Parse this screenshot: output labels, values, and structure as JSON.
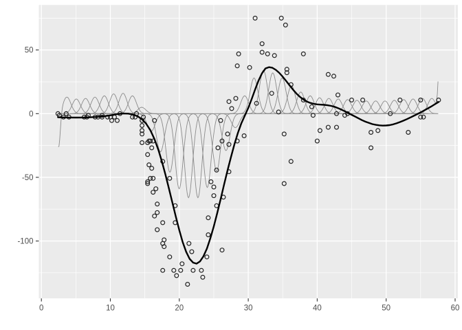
{
  "chart_data": {
    "type": "scatter",
    "title": "",
    "xlabel": "",
    "ylabel": "",
    "legend": "none",
    "axes": {
      "xlim": [
        -0.37,
        60.4
      ],
      "ylim": [
        -145.05,
        85.35
      ],
      "x_major_ticks": [
        0,
        10,
        20,
        30,
        40,
        50,
        60
      ],
      "x_minor_ticks": [
        5,
        15,
        25,
        35,
        45,
        55
      ],
      "y_major_ticks": [
        -100,
        -50,
        0,
        50
      ],
      "y_minor_ticks": [
        -125,
        -75,
        -25,
        25,
        75
      ],
      "x_tick_labels": [
        "0",
        "10",
        "20",
        "30",
        "40",
        "50",
        "60"
      ],
      "y_tick_labels": [
        "-100",
        "-50",
        "0",
        "50"
      ],
      "grid": true
    },
    "colors": {
      "outer_background": "#FFFFFF",
      "panel_background": "#EBEBEB",
      "grid_major": "#FFFFFF",
      "grid_minor": "#FFFFFF",
      "points": "#222222",
      "smooth_line": "#000000",
      "basis_curves": "#8A8A8A",
      "tick_marks": "#333333",
      "tick_labels": "#4D4D4D"
    },
    "points": [
      [
        2.4,
        0.0
      ],
      [
        2.6,
        -1.3
      ],
      [
        3.2,
        -2.7
      ],
      [
        3.6,
        0.0
      ],
      [
        4.0,
        -2.7
      ],
      [
        6.2,
        -2.7
      ],
      [
        6.6,
        -2.7
      ],
      [
        6.8,
        -1.3
      ],
      [
        7.8,
        -2.7
      ],
      [
        8.2,
        -2.7
      ],
      [
        8.8,
        -1.3
      ],
      [
        8.8,
        -2.7
      ],
      [
        9.6,
        -2.7
      ],
      [
        10.0,
        -2.7
      ],
      [
        10.2,
        -5.4
      ],
      [
        10.6,
        -2.7
      ],
      [
        11.0,
        -5.4
      ],
      [
        11.4,
        0.0
      ],
      [
        13.2,
        -2.7
      ],
      [
        13.6,
        -2.7
      ],
      [
        13.8,
        0.0
      ],
      [
        14.6,
        -13.3
      ],
      [
        14.6,
        -5.4
      ],
      [
        14.6,
        -5.4
      ],
      [
        14.6,
        -9.3
      ],
      [
        14.6,
        -16.0
      ],
      [
        14.6,
        -22.8
      ],
      [
        14.8,
        -2.7
      ],
      [
        15.4,
        -22.8
      ],
      [
        15.4,
        -32.1
      ],
      [
        15.4,
        -53.5
      ],
      [
        15.4,
        -54.9
      ],
      [
        15.6,
        -40.2
      ],
      [
        15.6,
        -21.5
      ],
      [
        15.8,
        -21.5
      ],
      [
        15.8,
        -50.8
      ],
      [
        16.0,
        -42.9
      ],
      [
        16.0,
        -26.8
      ],
      [
        16.2,
        -21.5
      ],
      [
        16.2,
        -50.8
      ],
      [
        16.2,
        -61.7
      ],
      [
        16.4,
        -5.4
      ],
      [
        16.4,
        -80.4
      ],
      [
        16.6,
        -59.0
      ],
      [
        16.8,
        -71.0
      ],
      [
        16.8,
        -91.1
      ],
      [
        16.8,
        -77.7
      ],
      [
        17.6,
        -37.5
      ],
      [
        17.6,
        -85.6
      ],
      [
        17.6,
        -123.1
      ],
      [
        17.6,
        -101.9
      ],
      [
        17.8,
        -99.1
      ],
      [
        17.8,
        -104.4
      ],
      [
        18.6,
        -112.5
      ],
      [
        18.6,
        -50.8
      ],
      [
        19.2,
        -123.1
      ],
      [
        19.4,
        -85.6
      ],
      [
        19.4,
        -72.3
      ],
      [
        19.6,
        -127.2
      ],
      [
        20.2,
        -123.1
      ],
      [
        20.4,
        -117.9
      ],
      [
        21.2,
        -134.0
      ],
      [
        21.4,
        -101.9
      ],
      [
        21.8,
        -108.4
      ],
      [
        22.0,
        -123.1
      ],
      [
        23.2,
        -123.1
      ],
      [
        23.4,
        -128.5
      ],
      [
        24.0,
        -112.5
      ],
      [
        24.2,
        -95.1
      ],
      [
        24.2,
        -81.8
      ],
      [
        24.6,
        -53.5
      ],
      [
        25.0,
        -64.4
      ],
      [
        25.0,
        -57.6
      ],
      [
        25.4,
        -72.3
      ],
      [
        25.4,
        -44.3
      ],
      [
        25.6,
        -26.8
      ],
      [
        26.0,
        -5.4
      ],
      [
        26.2,
        -107.1
      ],
      [
        26.2,
        -21.5
      ],
      [
        26.4,
        -65.6
      ],
      [
        27.0,
        -16.0
      ],
      [
        27.2,
        -45.6
      ],
      [
        27.2,
        -24.2
      ],
      [
        27.2,
        9.5
      ],
      [
        27.6,
        4.0
      ],
      [
        28.2,
        12.0
      ],
      [
        28.4,
        -21.5
      ],
      [
        28.4,
        37.5
      ],
      [
        28.6,
        46.9
      ],
      [
        29.4,
        -17.4
      ],
      [
        30.2,
        36.2
      ],
      [
        31.0,
        75.0
      ],
      [
        31.2,
        8.1
      ],
      [
        32.0,
        54.9
      ],
      [
        32.0,
        48.2
      ],
      [
        32.8,
        46.9
      ],
      [
        33.4,
        16.0
      ],
      [
        33.8,
        45.6
      ],
      [
        34.4,
        1.3
      ],
      [
        34.8,
        75.0
      ],
      [
        35.2,
        -16.0
      ],
      [
        35.2,
        -54.9
      ],
      [
        35.4,
        69.6
      ],
      [
        35.6,
        34.8
      ],
      [
        35.6,
        32.1
      ],
      [
        36.2,
        -37.5
      ],
      [
        36.2,
        22.8
      ],
      [
        38.0,
        46.9
      ],
      [
        38.0,
        10.7
      ],
      [
        39.2,
        5.4
      ],
      [
        39.4,
        -1.3
      ],
      [
        40.0,
        -21.5
      ],
      [
        40.4,
        -13.3
      ],
      [
        41.6,
        30.8
      ],
      [
        41.6,
        -10.7
      ],
      [
        42.4,
        29.4
      ],
      [
        42.8,
        0.0
      ],
      [
        42.8,
        -10.7
      ],
      [
        43.0,
        14.7
      ],
      [
        44.0,
        -1.3
      ],
      [
        44.4,
        0.0
      ],
      [
        45.0,
        10.7
      ],
      [
        46.6,
        10.7
      ],
      [
        47.8,
        -26.8
      ],
      [
        47.8,
        -14.7
      ],
      [
        48.8,
        -13.3
      ],
      [
        50.6,
        0.0
      ],
      [
        52.0,
        10.7
      ],
      [
        53.2,
        -14.7
      ],
      [
        55.0,
        -2.7
      ],
      [
        55.0,
        10.7
      ],
      [
        55.4,
        -2.7
      ],
      [
        57.6,
        10.7
      ]
    ],
    "smooth_line": [
      [
        2.4,
        -2.8
      ],
      [
        3.5,
        -3.0
      ],
      [
        5.0,
        -3.1
      ],
      [
        6.5,
        -3.0
      ],
      [
        8.0,
        -2.6
      ],
      [
        9.0,
        -2.1
      ],
      [
        10.0,
        -1.3
      ],
      [
        11.0,
        -0.4
      ],
      [
        11.8,
        0.1
      ],
      [
        12.6,
        0.0
      ],
      [
        13.3,
        -0.7
      ],
      [
        14.0,
        -2.2
      ],
      [
        14.6,
        -4.5
      ],
      [
        15.2,
        -8.0
      ],
      [
        15.8,
        -13.0
      ],
      [
        16.4,
        -20.0
      ],
      [
        17.0,
        -29.0
      ],
      [
        17.5,
        -38.0
      ],
      [
        18.0,
        -48.0
      ],
      [
        18.5,
        -59.0
      ],
      [
        19.0,
        -70.0
      ],
      [
        19.5,
        -81.0
      ],
      [
        20.0,
        -91.5
      ],
      [
        20.5,
        -101.0
      ],
      [
        21.0,
        -108.5
      ],
      [
        21.5,
        -114.0
      ],
      [
        22.0,
        -117.0
      ],
      [
        22.5,
        -117.8
      ],
      [
        23.0,
        -116.0
      ],
      [
        23.5,
        -112.0
      ],
      [
        24.0,
        -106.0
      ],
      [
        24.5,
        -98.0
      ],
      [
        25.0,
        -88.5
      ],
      [
        25.5,
        -78.0
      ],
      [
        26.0,
        -67.0
      ],
      [
        26.5,
        -55.5
      ],
      [
        27.0,
        -44.5
      ],
      [
        27.5,
        -34.0
      ],
      [
        28.0,
        -24.0
      ],
      [
        28.5,
        -15.0
      ],
      [
        29.0,
        -7.5
      ],
      [
        29.5,
        -1.5
      ],
      [
        30.0,
        4.5
      ],
      [
        30.5,
        11.5
      ],
      [
        31.0,
        19.0
      ],
      [
        31.5,
        26.0
      ],
      [
        32.0,
        31.8
      ],
      [
        32.5,
        35.5
      ],
      [
        33.0,
        36.5
      ],
      [
        33.5,
        36.0
      ],
      [
        34.0,
        34.4
      ],
      [
        34.5,
        32.0
      ],
      [
        35.0,
        29.0
      ],
      [
        35.5,
        25.6
      ],
      [
        36.0,
        22.2
      ],
      [
        36.5,
        18.8
      ],
      [
        37.0,
        15.7
      ],
      [
        37.5,
        13.2
      ],
      [
        38.0,
        11.1
      ],
      [
        38.5,
        9.5
      ],
      [
        39.0,
        8.4
      ],
      [
        39.5,
        7.7
      ],
      [
        40.0,
        7.3
      ],
      [
        40.5,
        7.1
      ],
      [
        41.0,
        6.9
      ],
      [
        41.5,
        6.6
      ],
      [
        42.0,
        6.1
      ],
      [
        42.5,
        5.4
      ],
      [
        43.0,
        4.4
      ],
      [
        43.5,
        3.2
      ],
      [
        44.0,
        1.9
      ],
      [
        44.5,
        0.5
      ],
      [
        45.0,
        -0.9
      ],
      [
        45.5,
        -2.3
      ],
      [
        46.0,
        -3.7
      ],
      [
        46.5,
        -5.1
      ],
      [
        47.0,
        -6.3
      ],
      [
        47.5,
        -7.3
      ],
      [
        48.0,
        -8.2
      ],
      [
        48.5,
        -8.8
      ],
      [
        49.0,
        -9.2
      ],
      [
        49.5,
        -9.4
      ],
      [
        50.0,
        -9.3
      ],
      [
        50.5,
        -9.0
      ],
      [
        51.0,
        -8.4
      ],
      [
        51.5,
        -7.6
      ],
      [
        52.0,
        -6.6
      ],
      [
        52.5,
        -5.5
      ],
      [
        53.0,
        -4.3
      ],
      [
        53.5,
        -3.0
      ],
      [
        54.0,
        -1.7
      ],
      [
        54.5,
        -0.4
      ],
      [
        55.0,
        1.0
      ],
      [
        55.5,
        2.5
      ],
      [
        56.0,
        4.0
      ],
      [
        56.5,
        5.5
      ],
      [
        57.0,
        7.2
      ],
      [
        57.6,
        9.2
      ]
    ],
    "basis_functions": {
      "sigma": 0.58,
      "domain": [
        2.45,
        57.6
      ],
      "centers": [
        3.7,
        5.06,
        6.41,
        7.77,
        9.13,
        10.48,
        11.84,
        13.2,
        14.55,
        15.91,
        17.27,
        18.63,
        19.98,
        21.34,
        22.7,
        24.06,
        25.41,
        26.77,
        28.13,
        29.48,
        30.84,
        32.2,
        33.55,
        34.91,
        36.27,
        37.62,
        38.98,
        40.34,
        41.69,
        43.05,
        44.41,
        45.76,
        47.12,
        48.48,
        49.83,
        51.19,
        52.55,
        53.9,
        55.26,
        56.62
      ],
      "amplitudes": [
        13,
        11.5,
        12,
        13,
        14,
        15.5,
        16,
        14,
        5,
        -14,
        -30,
        -46,
        -59,
        -66,
        -66,
        -58,
        -45,
        -29,
        -11,
        14,
        28,
        34,
        32,
        28,
        22,
        17,
        14,
        12.5,
        12,
        11.5,
        11,
        10.5,
        10,
        10,
        10,
        10.5,
        11,
        11.5,
        12,
        12
      ],
      "left_edge_tail": {
        "center": 2.5,
        "sigma": 0.24,
        "amplitude": -28
      },
      "right_edge_spike": {
        "center": 57.75,
        "sigma": 0.2,
        "amplitude": 42
      }
    }
  }
}
